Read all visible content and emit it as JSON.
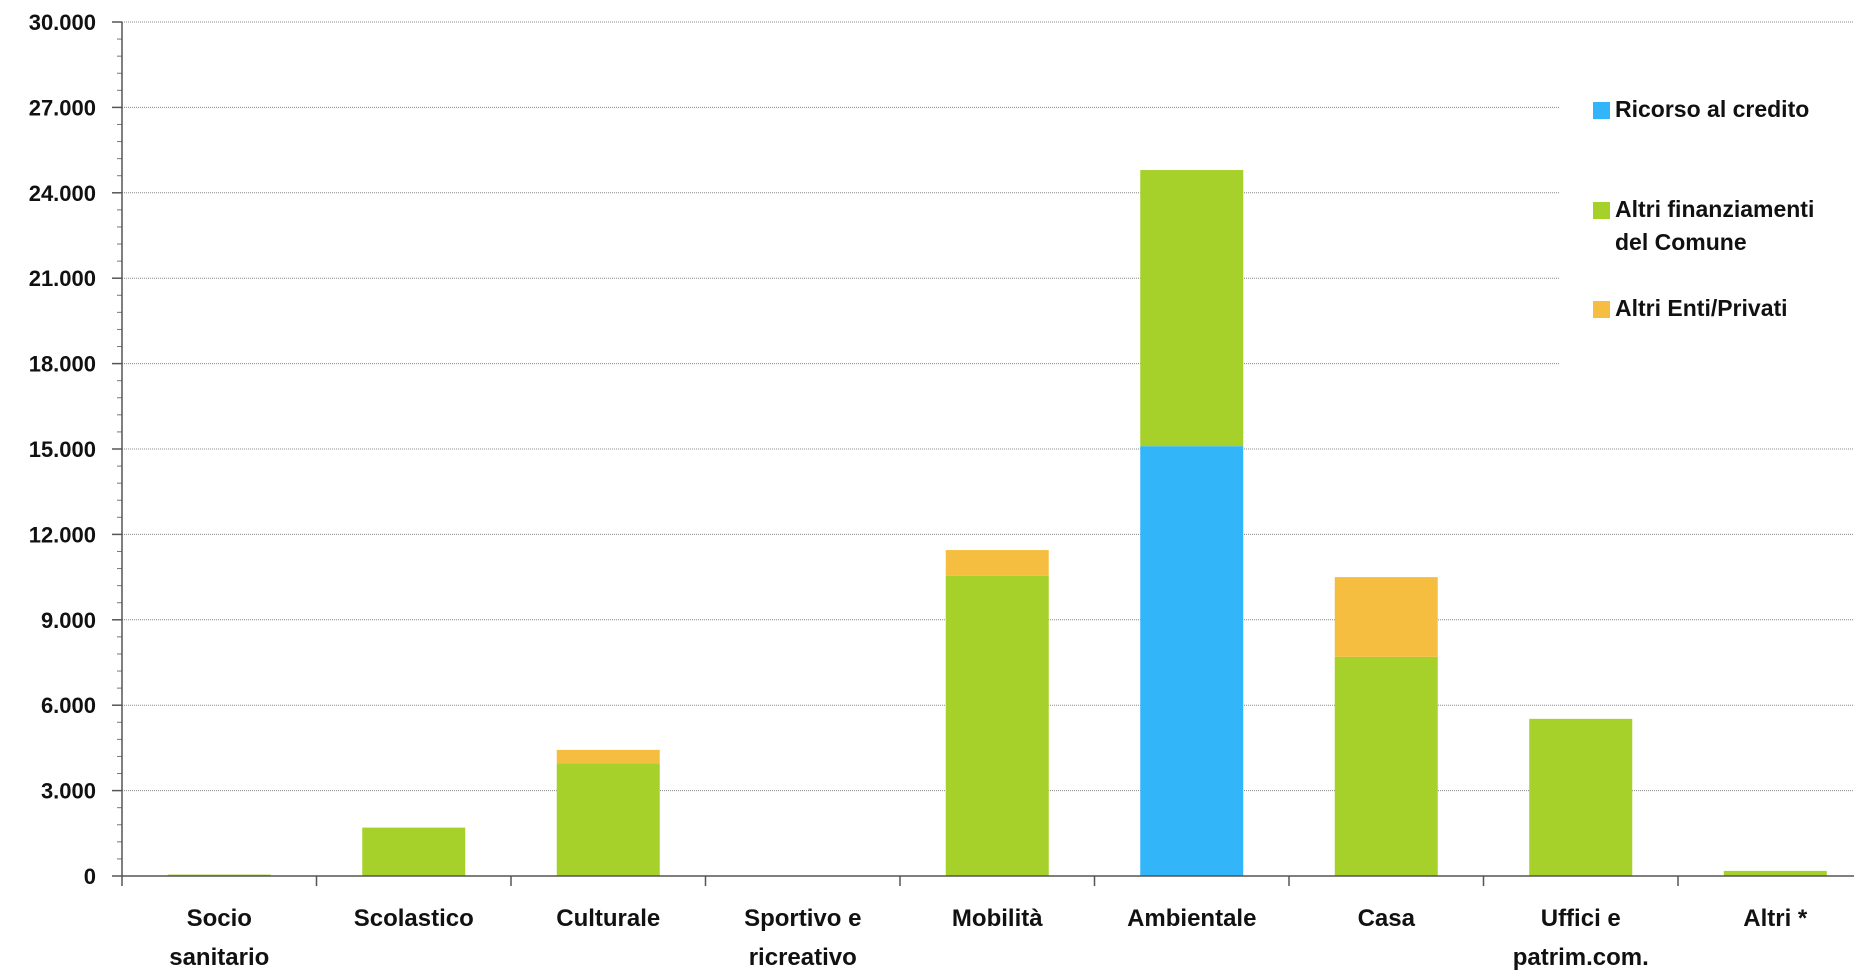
{
  "chart_data": {
    "type": "bar",
    "stacked": true,
    "title": "",
    "xlabel": "",
    "ylabel": "",
    "ylim": [
      0,
      30000
    ],
    "yticks": [
      "0",
      "3.000",
      "6.000",
      "9.000",
      "12.000",
      "15.000",
      "18.000",
      "21.000",
      "24.000",
      "27.000",
      "30.000"
    ],
    "ytick_values": [
      0,
      3000,
      6000,
      9000,
      12000,
      15000,
      18000,
      21000,
      24000,
      27000,
      30000
    ],
    "grid": true,
    "legend_position": "right",
    "categories": [
      [
        "Socio",
        "sanitario"
      ],
      [
        "Scolastico"
      ],
      [
        "Culturale"
      ],
      [
        "Sportivo e",
        "ricreativo"
      ],
      [
        "Mobilità"
      ],
      [
        "Ambientale"
      ],
      [
        "Casa"
      ],
      [
        "Uffici e",
        "patrim.com."
      ],
      [
        "Altri *"
      ]
    ],
    "series": [
      {
        "name": "Ricorso al credito",
        "color": "#33b5f9",
        "values": [
          0,
          0,
          0,
          0,
          0,
          15100,
          0,
          0,
          0
        ]
      },
      {
        "name": "Altri finanziamenti del Comune",
        "legend_lines": [
          "Altri finanziamenti",
          "del Comune"
        ],
        "color": "#a5d12a",
        "values": [
          50,
          1700,
          3950,
          0,
          10550,
          9700,
          7700,
          5520,
          180
        ]
      },
      {
        "name": "Altri Enti/Privati",
        "color": "#f5be40",
        "values": [
          0,
          0,
          480,
          0,
          900,
          0,
          2800,
          0,
          0
        ]
      }
    ]
  }
}
